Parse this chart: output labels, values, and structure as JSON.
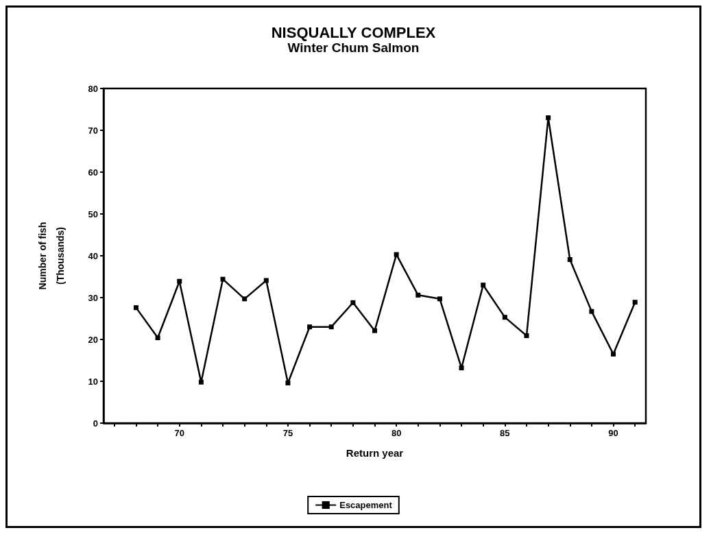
{
  "chart_data": {
    "type": "line",
    "title": "NISQUALLY COMPLEX",
    "subtitle": "Winter Chum Salmon",
    "xlabel": "Return year",
    "ylabel": "Number of fish\n(Thousands)",
    "x": [
      68,
      69,
      70,
      71,
      72,
      73,
      74,
      75,
      76,
      77,
      78,
      79,
      80,
      81,
      82,
      83,
      84,
      85,
      86,
      87,
      88,
      89,
      90,
      91
    ],
    "series": [
      {
        "name": "Escapement",
        "color": "#000000",
        "values": [
          27.6,
          20.4,
          33.9,
          9.8,
          34.4,
          29.7,
          34.1,
          9.6,
          23.0,
          23.0,
          28.8,
          22.1,
          40.3,
          30.6,
          29.7,
          13.2,
          33.0,
          25.3,
          20.9,
          73.0,
          39.1,
          26.7,
          16.5,
          28.9
        ]
      }
    ],
    "xlim": [
      66.5,
      91.5
    ],
    "xticks": [
      {
        "value": 67,
        "label": null
      },
      {
        "value": 68,
        "label": null
      },
      {
        "value": 69,
        "label": null
      },
      70,
      {
        "value": 71,
        "label": null
      },
      {
        "value": 72,
        "label": null
      },
      {
        "value": 73,
        "label": null
      },
      {
        "value": 74,
        "label": null
      },
      75,
      {
        "value": 76,
        "label": null
      },
      {
        "value": 77,
        "label": null
      },
      {
        "value": 78,
        "label": null
      },
      {
        "value": 79,
        "label": null
      },
      80,
      {
        "value": 81,
        "label": null
      },
      {
        "value": 82,
        "label": null
      },
      {
        "value": 83,
        "label": null
      },
      {
        "value": 84,
        "label": null
      },
      85,
      {
        "value": 86,
        "label": null
      },
      {
        "value": 87,
        "label": null
      },
      {
        "value": 88,
        "label": null
      },
      {
        "value": 89,
        "label": null
      },
      90,
      {
        "value": 91,
        "label": null
      }
    ],
    "ylim": [
      0,
      80
    ],
    "yticks": [
      0,
      10,
      20,
      30,
      40,
      50,
      60,
      70,
      80
    ],
    "grid": false,
    "legend": "bottom",
    "marker": "square",
    "line_style": "solid"
  }
}
